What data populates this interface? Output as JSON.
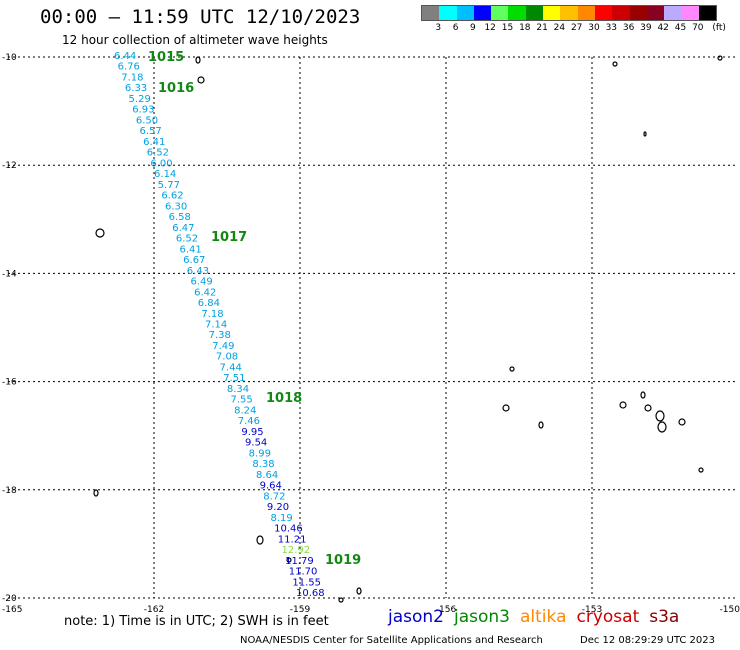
{
  "header": {
    "title": "00:00 – 11:59 UTC 12/10/2023",
    "subtitle": "12 hour collection of altimeter wave heights"
  },
  "legend": {
    "unit": "(ft)",
    "colors": [
      "#808080",
      "#00ffff",
      "#00bfff",
      "#0000ff",
      "#5fff5f",
      "#00dd00",
      "#008800",
      "#ffff00",
      "#ffc000",
      "#ff8800",
      "#ff0000",
      "#cc0000",
      "#990000",
      "#880022",
      "#bbaaff",
      "#ff88ff",
      "#000000"
    ],
    "labels": [
      "3",
      "6",
      "9",
      "12",
      "15",
      "18",
      "21",
      "24",
      "27",
      "30",
      "33",
      "36",
      "39",
      "42",
      "45",
      "70"
    ]
  },
  "chart_data": {
    "type": "scatter",
    "title": "00:00 – 11:59 UTC 12/10/2023",
    "subtitle": "12 hour collection of altimeter wave heights",
    "xlim": [
      -165,
      -150
    ],
    "ylim": [
      -20,
      -10
    ],
    "x_ticks": [
      "-165",
      "-162",
      "-159",
      "-156",
      "-153",
      "-150"
    ],
    "y_ticks": [
      "-10",
      "-12",
      "-14",
      "-16",
      "-18",
      "-20"
    ],
    "grid": true,
    "units": "ft",
    "swh_values": [
      "6.44",
      "6.76",
      "7.18",
      "6.33",
      "5.29",
      "6.93",
      "6.50",
      "6.57",
      "6.41",
      "6.52",
      "6.00",
      "6.14",
      "5.77",
      "6.62",
      "6.30",
      "6.58",
      "6.47",
      "6.52",
      "6.41",
      "6.67",
      "6.43",
      "6.49",
      "6.42",
      "6.84",
      "7.18",
      "7.14",
      "7.38",
      "7.49",
      "7.08",
      "7.44",
      "7.51",
      "8.34",
      "7.55",
      "8.24",
      "7.46",
      "9.95",
      "9.54",
      "8.99",
      "8.38",
      "8.64",
      "9.64",
      "8.72",
      "9.20",
      "8.19",
      "10.46",
      "11.21",
      "12.92",
      "11.79",
      "11.70",
      "11.55",
      "10.68"
    ],
    "swh_colors": [
      "#00a0e0",
      "#00a0e0",
      "#00a0e0",
      "#00a0e0",
      "#00a0e0",
      "#00a0e0",
      "#00a0e0",
      "#00a0e0",
      "#00a0e0",
      "#00a0e0",
      "#00a0e0",
      "#00a0e0",
      "#00a0e0",
      "#00a0e0",
      "#00a0e0",
      "#00a0e0",
      "#00a0e0",
      "#00a0e0",
      "#00a0e0",
      "#00a0e0",
      "#00a0e0",
      "#00a0e0",
      "#00a0e0",
      "#00a0e0",
      "#00a0e0",
      "#00a0e0",
      "#00a0e0",
      "#00a0e0",
      "#00a0e0",
      "#00a0e0",
      "#00a0e0",
      "#00a0e0",
      "#00a0e0",
      "#00a0e0",
      "#00a0e0",
      "#0000cc",
      "#0000cc",
      "#00a0e0",
      "#00a0e0",
      "#00a0e0",
      "#0000cc",
      "#00a0e0",
      "#0000cc",
      "#00a0e0",
      "#0000cc",
      "#0000cc",
      "#88dd44",
      "#0000cc",
      "#0000cc",
      "#0000cc",
      "#0000cc"
    ],
    "pressures": [
      "1015",
      "1016",
      "1017",
      "1018",
      "1019"
    ]
  },
  "footer": {
    "note": "note:  1) Time is in UTC;  2) SWH is in feet",
    "missions": [
      {
        "name": "jason2",
        "color": "#0000cc"
      },
      {
        "name": "jason3",
        "color": "#008800"
      },
      {
        "name": "altika",
        "color": "#ff8800"
      },
      {
        "name": "cryosat",
        "color": "#cc0000"
      },
      {
        "name": "s3a",
        "color": "#880000"
      }
    ],
    "credit": "NOAA/NESDIS Center for Satellite Applications and Research",
    "timestamp": "Dec 12 08:29:29 UTC 2023"
  }
}
